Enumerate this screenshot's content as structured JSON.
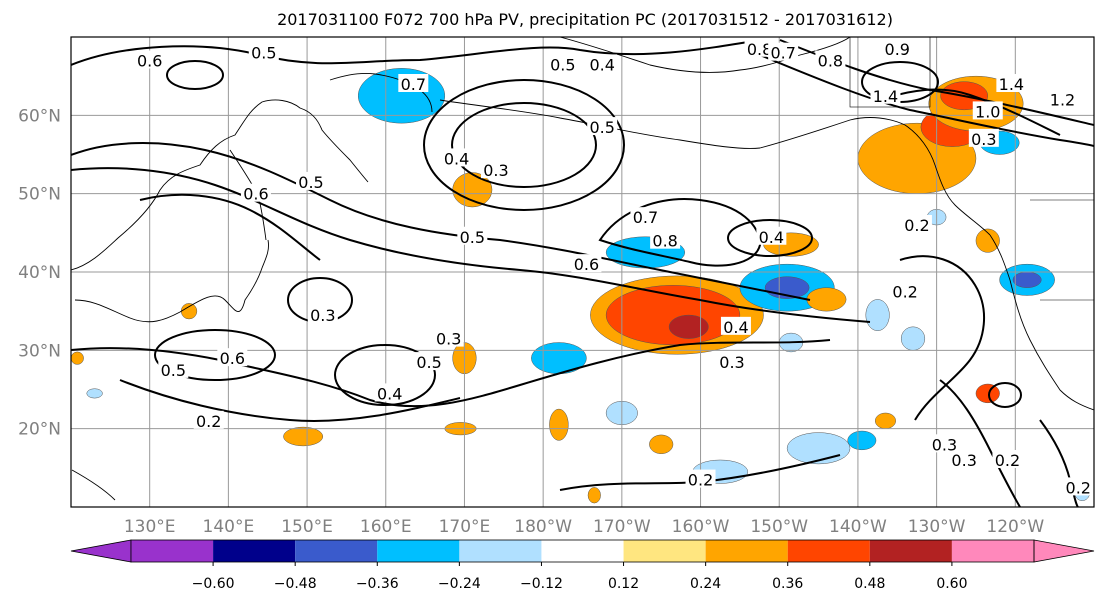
{
  "chart_data": {
    "type": "contour-map",
    "title": "2017031100 F072 700 hPa PV, precipitation PC (2017031512 - 2017031612)",
    "lon_ticks": [
      "130°E",
      "140°E",
      "150°E",
      "160°E",
      "170°E",
      "180°W",
      "170°W",
      "160°W",
      "150°W",
      "140°W",
      "130°W",
      "120°W"
    ],
    "lat_ticks": [
      "20°N",
      "30°N",
      "40°N",
      "50°N",
      "60°N"
    ],
    "lon_range": [
      120,
      250
    ],
    "lat_range": [
      10,
      70
    ],
    "grid": true,
    "colorbar": {
      "position": "bottom",
      "extend": "both",
      "boundaries": [
        -0.6,
        -0.48,
        -0.36,
        -0.24,
        -0.12,
        0.12,
        0.24,
        0.36,
        0.48,
        0.6
      ],
      "tick_labels": [
        "−0.60",
        "−0.48",
        "−0.36",
        "−0.24",
        "−0.12",
        "0.12",
        "0.24",
        "0.36",
        "0.48",
        "0.60"
      ],
      "colors": [
        "#9932cc",
        "#00008b",
        "#3a5bcc",
        "#00bfff",
        "#b0e0ff",
        "#ffffff",
        "#ffe680",
        "#ffa500",
        "#ff4500",
        "#b22222",
        "#ff88bb"
      ]
    },
    "contour_labels": [
      {
        "text": "0.6",
        "lon": 130.0,
        "lat": 67.0
      },
      {
        "text": "0.5",
        "lon": 144.5,
        "lat": 68.0
      },
      {
        "text": "0.7",
        "lon": 163.5,
        "lat": 64.0
      },
      {
        "text": "0.5",
        "lon": 182.5,
        "lat": 66.5
      },
      {
        "text": "0.4",
        "lon": 187.5,
        "lat": 66.5
      },
      {
        "text": "0.8",
        "lon": 207.5,
        "lat": 68.5
      },
      {
        "text": "0.7",
        "lon": 210.5,
        "lat": 68.0
      },
      {
        "text": "0.8",
        "lon": 216.5,
        "lat": 67.0
      },
      {
        "text": "0.9",
        "lon": 225.0,
        "lat": 68.5
      },
      {
        "text": "1.4",
        "lon": 239.5,
        "lat": 64.0
      },
      {
        "text": "1.2",
        "lon": 246.0,
        "lat": 62.0
      },
      {
        "text": "1.4",
        "lon": 223.5,
        "lat": 62.5
      },
      {
        "text": "1.0",
        "lon": 236.5,
        "lat": 60.5
      },
      {
        "text": "0.3",
        "lon": 236.0,
        "lat": 57.0
      },
      {
        "text": "0.5",
        "lon": 187.5,
        "lat": 58.5
      },
      {
        "text": "0.4",
        "lon": 169.0,
        "lat": 54.5
      },
      {
        "text": "0.3",
        "lon": 174.0,
        "lat": 53.0
      },
      {
        "text": "0.5",
        "lon": 150.5,
        "lat": 51.5
      },
      {
        "text": "0.6",
        "lon": 143.5,
        "lat": 50.0
      },
      {
        "text": "0.7",
        "lon": 193.0,
        "lat": 47.0
      },
      {
        "text": "0.8",
        "lon": 195.5,
        "lat": 44.0
      },
      {
        "text": "0.5",
        "lon": 171.0,
        "lat": 44.5
      },
      {
        "text": "0.4",
        "lon": 209.0,
        "lat": 44.5
      },
      {
        "text": "0.6",
        "lon": 185.5,
        "lat": 41.0
      },
      {
        "text": "0.3",
        "lon": 152.0,
        "lat": 34.5
      },
      {
        "text": "0.3",
        "lon": 168.0,
        "lat": 31.5
      },
      {
        "text": "0.4",
        "lon": 204.5,
        "lat": 33.0
      },
      {
        "text": "0.3",
        "lon": 204.0,
        "lat": 28.5
      },
      {
        "text": "0.5",
        "lon": 165.5,
        "lat": 28.5
      },
      {
        "text": "0.5",
        "lon": 133.0,
        "lat": 27.5
      },
      {
        "text": "0.6",
        "lon": 140.5,
        "lat": 29.0
      },
      {
        "text": "0.4",
        "lon": 160.5,
        "lat": 24.5
      },
      {
        "text": "0.2",
        "lon": 137.5,
        "lat": 21.0
      },
      {
        "text": "0.2",
        "lon": 226.0,
        "lat": 37.5
      },
      {
        "text": "0.2",
        "lon": 227.5,
        "lat": 46.0
      },
      {
        "text": "0.3",
        "lon": 233.5,
        "lat": 16.0
      },
      {
        "text": "0.2",
        "lon": 239.0,
        "lat": 16.0
      },
      {
        "text": "0.2",
        "lon": 248.0,
        "lat": 12.5
      },
      {
        "text": "0.2",
        "lon": 200.0,
        "lat": 13.5
      },
      {
        "text": "0.3",
        "lon": 231.0,
        "lat": 18.0
      }
    ],
    "shaded_regions": [
      {
        "level": -0.48,
        "lon": 160.5,
        "lat": 62.5,
        "rlon": 3.0,
        "rlat": 2.5
      },
      {
        "level": -0.36,
        "lon": 162.0,
        "lat": 62.5,
        "rlon": 5.5,
        "rlat": 3.5
      },
      {
        "level": 0.24,
        "lon": 171.0,
        "lat": 50.5,
        "rlon": 2.5,
        "rlat": 2.2
      },
      {
        "level": -0.36,
        "lon": 193.0,
        "lat": 42.5,
        "rlon": 5.0,
        "rlat": 2.0
      },
      {
        "level": 0.24,
        "lon": 197.0,
        "lat": 34.5,
        "rlon": 11.0,
        "rlat": 5.0
      },
      {
        "level": 0.36,
        "lon": 196.5,
        "lat": 34.5,
        "rlon": 8.5,
        "rlat": 3.8
      },
      {
        "level": 0.48,
        "lon": 198.5,
        "lat": 33.0,
        "rlon": 2.5,
        "rlat": 1.5
      },
      {
        "level": -0.36,
        "lon": 211.0,
        "lat": 38.0,
        "rlon": 6.0,
        "rlat": 3.0
      },
      {
        "level": -0.48,
        "lon": 211.0,
        "lat": 38.0,
        "rlon": 2.8,
        "rlat": 1.4
      },
      {
        "level": 0.24,
        "lon": 211.5,
        "lat": 43.5,
        "rlon": 3.5,
        "rlat": 1.5
      },
      {
        "level": 0.24,
        "lon": 216.0,
        "lat": 36.5,
        "rlon": 2.5,
        "rlat": 1.5
      },
      {
        "level": 0.24,
        "lon": 227.5,
        "lat": 54.5,
        "rlon": 7.5,
        "rlat": 4.5
      },
      {
        "level": 0.36,
        "lon": 232.0,
        "lat": 58.5,
        "rlon": 4.0,
        "rlat": 2.5
      },
      {
        "level": 0.24,
        "lon": 235.0,
        "lat": 61.5,
        "rlon": 6.0,
        "rlat": 3.5
      },
      {
        "level": 0.36,
        "lon": 233.5,
        "lat": 62.5,
        "rlon": 3.0,
        "rlat": 1.8
      },
      {
        "level": -0.36,
        "lon": 238.0,
        "lat": 56.5,
        "rlon": 2.5,
        "rlat": 1.5
      },
      {
        "level": -0.36,
        "lon": 241.5,
        "lat": 39.0,
        "rlon": 3.5,
        "rlat": 2.0
      },
      {
        "level": -0.48,
        "lon": 241.5,
        "lat": 39.0,
        "rlon": 1.8,
        "rlat": 1.0
      },
      {
        "level": -0.36,
        "lon": 182.0,
        "lat": 29.0,
        "rlon": 3.5,
        "rlat": 2.0
      },
      {
        "level": 0.24,
        "lon": 170.0,
        "lat": 29.0,
        "rlon": 1.5,
        "rlat": 2.0
      },
      {
        "level": 0.24,
        "lon": 135.0,
        "lat": 35.0,
        "rlon": 1.0,
        "rlat": 1.0
      },
      {
        "level": 0.24,
        "lon": 149.5,
        "lat": 19.0,
        "rlon": 2.5,
        "rlat": 1.2
      },
      {
        "level": 0.24,
        "lon": 169.5,
        "lat": 20.0,
        "rlon": 2.0,
        "rlat": 0.8
      },
      {
        "level": 0.24,
        "lon": 182.0,
        "lat": 20.5,
        "rlon": 1.2,
        "rlat": 2.0
      },
      {
        "level": -0.24,
        "lon": 190.0,
        "lat": 22.0,
        "rlon": 2.0,
        "rlat": 1.5
      },
      {
        "level": 0.24,
        "lon": 195.0,
        "lat": 18.0,
        "rlon": 1.5,
        "rlat": 1.2
      },
      {
        "level": -0.24,
        "lon": 202.5,
        "lat": 14.5,
        "rlon": 3.5,
        "rlat": 1.5
      },
      {
        "level": -0.24,
        "lon": 215.0,
        "lat": 17.5,
        "rlon": 4.0,
        "rlat": 2.0
      },
      {
        "level": -0.36,
        "lon": 220.5,
        "lat": 18.5,
        "rlon": 1.8,
        "rlat": 1.2
      },
      {
        "level": 0.24,
        "lon": 223.5,
        "lat": 21.0,
        "rlon": 1.3,
        "rlat": 1.0
      },
      {
        "level": -0.24,
        "lon": 222.5,
        "lat": 34.5,
        "rlon": 1.5,
        "rlat": 2.0
      },
      {
        "level": -0.24,
        "lon": 227.0,
        "lat": 31.5,
        "rlon": 1.5,
        "rlat": 1.5
      },
      {
        "level": -0.24,
        "lon": 211.5,
        "lat": 31.0,
        "rlon": 1.5,
        "rlat": 1.2
      },
      {
        "level": 0.36,
        "lon": 236.5,
        "lat": 24.5,
        "rlon": 1.5,
        "rlat": 1.2
      },
      {
        "level": 0.24,
        "lon": 236.5,
        "lat": 44.0,
        "rlon": 1.5,
        "rlat": 1.5
      },
      {
        "level": -0.24,
        "lon": 230.0,
        "lat": 47.0,
        "rlon": 1.2,
        "rlat": 1.0
      },
      {
        "level": -0.24,
        "lon": 248.5,
        "lat": 12.0,
        "rlon": 1.0,
        "rlat": 1.2
      },
      {
        "level": 0.24,
        "lon": 186.5,
        "lat": 11.5,
        "rlon": 0.8,
        "rlat": 1.0
      },
      {
        "level": -0.24,
        "lon": 123.0,
        "lat": 24.5,
        "rlon": 1.0,
        "rlat": 0.6
      },
      {
        "level": 0.24,
        "lon": 120.8,
        "lat": 29.0,
        "rlon": 0.8,
        "rlat": 0.8
      }
    ]
  }
}
